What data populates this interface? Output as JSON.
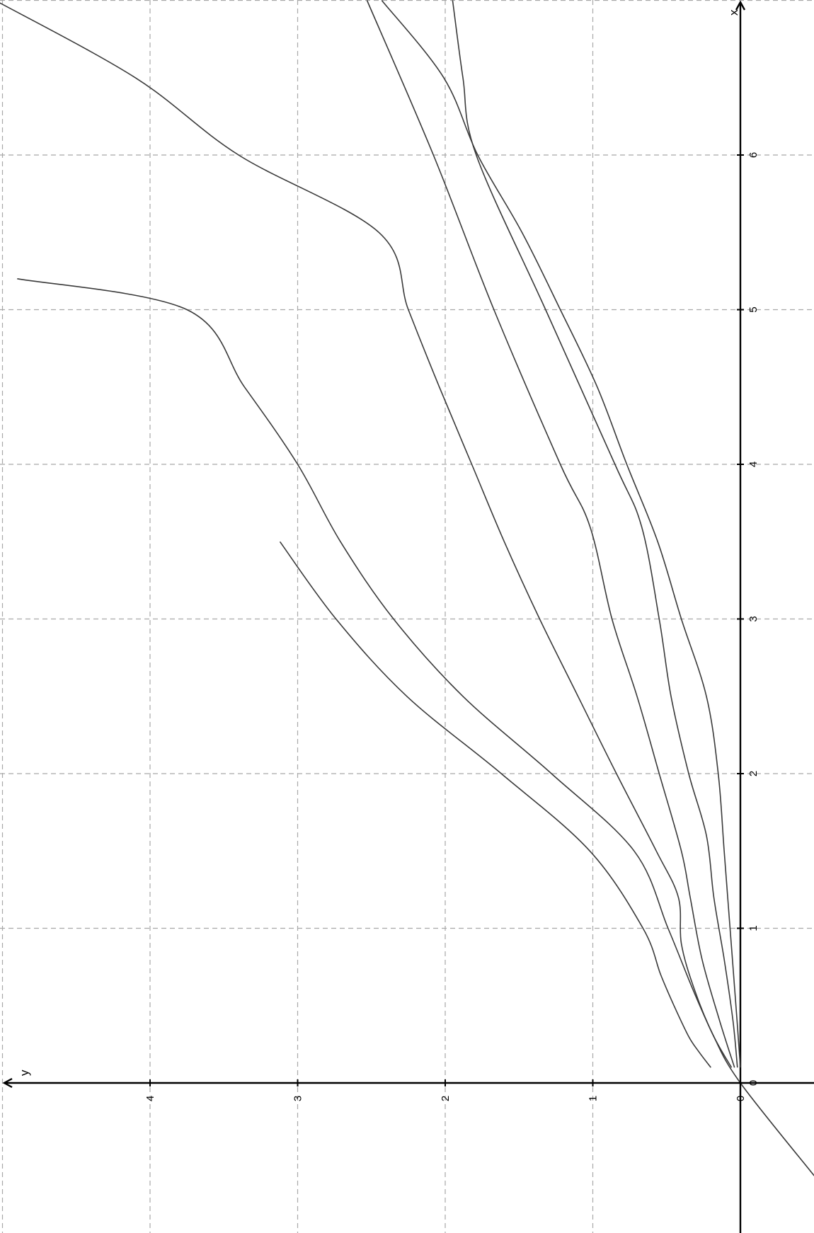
{
  "chart_data": {
    "type": "line",
    "orientation": "rotated-90-clockwise",
    "xlabel": "x",
    "ylabel": "y",
    "xlim": [
      -1.0,
      7.0
    ],
    "ylim": [
      -0.4,
      5.05
    ],
    "grid": true,
    "x_ticks": [
      0,
      1,
      2,
      3,
      4,
      5,
      6
    ],
    "y_ticks": [
      0,
      1,
      2,
      3,
      4
    ],
    "series": [
      {
        "x": [
          0.1,
          0.2,
          0.3,
          0.5,
          0.7,
          1.0,
          1.5,
          2.0,
          2.5,
          3.0,
          3.5
        ],
        "y": [
          0.2,
          0.28,
          0.35,
          0.45,
          0.54,
          0.66,
          1.02,
          1.62,
          2.26,
          2.74,
          3.12
        ]
      },
      {
        "x": [
          0.1,
          0.3,
          0.6,
          1.0,
          1.5,
          2.0,
          2.5,
          3.0,
          3.5,
          4.0,
          4.5,
          5.0,
          5.2
        ],
        "y": [
          0.06,
          0.18,
          0.32,
          0.49,
          0.72,
          1.28,
          1.88,
          2.35,
          2.71,
          3.0,
          3.36,
          3.75,
          4.9
        ]
      },
      {
        "x": [
          -0.6,
          0.0,
          0.3,
          0.6,
          0.9,
          1.2,
          1.5,
          2.0,
          2.5,
          3.0,
          3.5,
          4.0,
          4.5,
          5.0,
          5.5,
          6.0,
          6.5,
          7.0
        ],
        "y": [
          -0.5,
          0.0,
          0.18,
          0.31,
          0.4,
          0.42,
          0.57,
          0.84,
          1.1,
          1.36,
          1.6,
          1.82,
          2.04,
          2.25,
          2.45,
          3.4,
          4.1,
          5.05
        ]
      },
      {
        "x": [
          0.1,
          0.4,
          0.8,
          1.2,
          1.5,
          2.0,
          2.5,
          3.0,
          3.6,
          4.0,
          5.0,
          6.0,
          7.0
        ],
        "y": [
          0.04,
          0.14,
          0.26,
          0.34,
          0.4,
          0.55,
          0.7,
          0.87,
          1.02,
          1.22,
          1.67,
          2.08,
          2.53
        ]
      },
      {
        "x": [
          0.1,
          0.4,
          0.8,
          1.2,
          1.6,
          2.0,
          2.5,
          3.0,
          3.6,
          4.0,
          5.0,
          6.0,
          6.5,
          7.0
        ],
        "y": [
          0.02,
          0.05,
          0.11,
          0.18,
          0.23,
          0.35,
          0.47,
          0.55,
          0.67,
          0.85,
          1.32,
          1.79,
          1.88,
          1.95
        ]
      },
      {
        "x": [
          0.1,
          0.5,
          1.0,
          1.5,
          2.0,
          2.5,
          3.0,
          3.5,
          4.0,
          4.5,
          5.0,
          5.5,
          6.0,
          6.5,
          7.0
        ],
        "y": [
          0.0,
          0.03,
          0.07,
          0.11,
          0.15,
          0.23,
          0.4,
          0.56,
          0.77,
          0.97,
          1.22,
          1.48,
          1.78,
          2.01,
          2.43
        ]
      }
    ]
  }
}
